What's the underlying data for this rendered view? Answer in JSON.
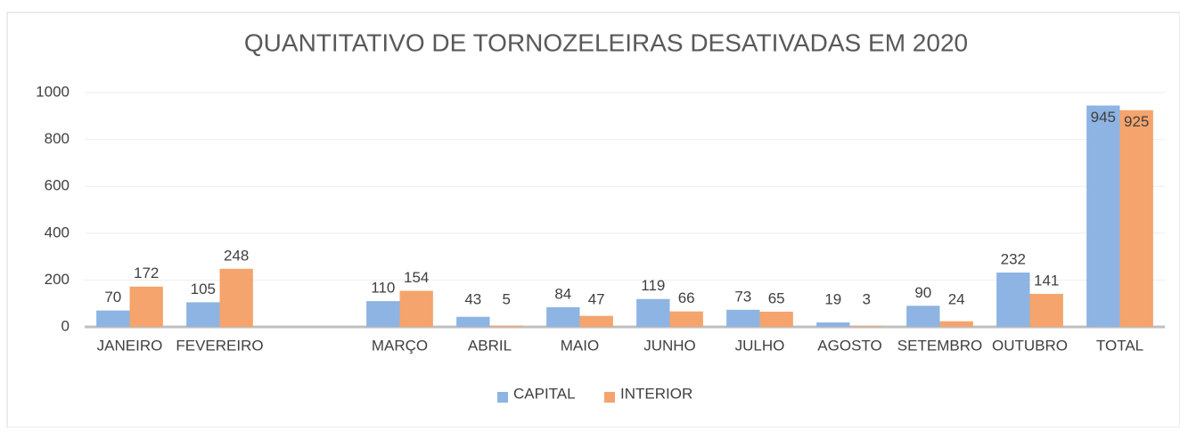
{
  "chart_data": {
    "type": "bar",
    "title": "QUANTITATIVO DE TORNOZELEIRAS DESATIVADAS EM  2020",
    "categories": [
      "JANEIRO",
      "FEVEREIRO",
      null,
      "MARÇO",
      "ABRIL",
      "MAIO",
      "JUNHO",
      "JULHO",
      "AGOSTO",
      "SETEMBRO",
      "OUTUBRO",
      "TOTAL"
    ],
    "series": [
      {
        "name": "CAPITAL",
        "color": "#8db4e2",
        "values": [
          70,
          105,
          null,
          110,
          43,
          84,
          119,
          73,
          19,
          90,
          232,
          945
        ]
      },
      {
        "name": "INTERIOR",
        "color": "#f4a46c",
        "values": [
          172,
          248,
          null,
          154,
          5,
          47,
          66,
          65,
          3,
          24,
          141,
          925
        ]
      }
    ],
    "ylim": [
      0,
      1000
    ],
    "yticks": [
      0,
      200,
      400,
      600,
      800,
      1000
    ],
    "grid": true,
    "legend": "bottom"
  }
}
